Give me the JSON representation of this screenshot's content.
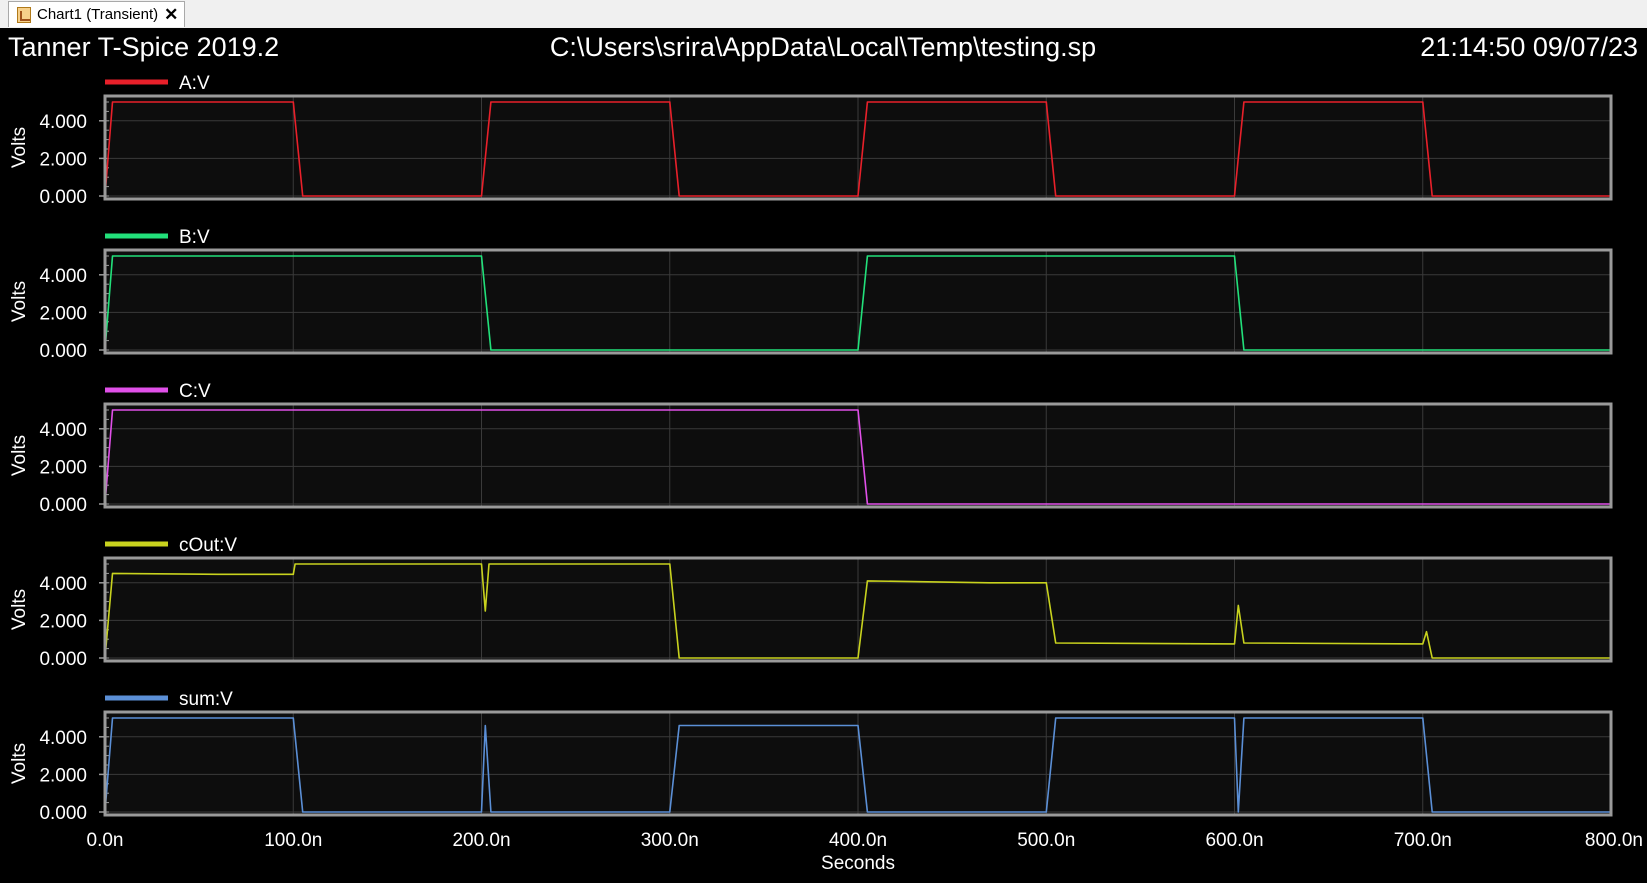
{
  "tab": {
    "label": "Chart1 (Transient)",
    "close_glyph": "✕",
    "icon": "chart-document-icon"
  },
  "header": {
    "app": "Tanner T-Spice 2019.2",
    "file": "C:\\Users\\srira\\AppData\\Local\\Temp\\testing.sp",
    "timestamp": "21:14:50 09/07/23"
  },
  "colors": {
    "background": "#000000",
    "plot_bg": "#0d0d0d",
    "frame": "#9a9a9a",
    "grid": "#3a3a3a",
    "text": "#ffffff"
  },
  "chart_data": {
    "type": "line",
    "xlabel": "Seconds",
    "xlim": [
      0,
      800
    ],
    "x_unit": "n",
    "x_ticks": [
      "0.0n",
      "100.0n",
      "200.0n",
      "300.0n",
      "400.0n",
      "500.0n",
      "600.0n",
      "700.0n",
      "800.0n"
    ],
    "ylabel": "Volts",
    "ylim": [
      0,
      5
    ],
    "y_ticks": [
      "0.000",
      "2.000",
      "4.000"
    ],
    "grid": true,
    "series": [
      {
        "name": "A:V",
        "color": "#e8202a",
        "points": [
          [
            0,
            0
          ],
          [
            4,
            5
          ],
          [
            100,
            5
          ],
          [
            105,
            0
          ],
          [
            200,
            0
          ],
          [
            205,
            5
          ],
          [
            300,
            5
          ],
          [
            305,
            0
          ],
          [
            400,
            0
          ],
          [
            405,
            5
          ],
          [
            500,
            5
          ],
          [
            505,
            0
          ],
          [
            600,
            0
          ],
          [
            605,
            5
          ],
          [
            700,
            5
          ],
          [
            705,
            0
          ],
          [
            800,
            0
          ]
        ]
      },
      {
        "name": "B:V",
        "color": "#22e07a",
        "points": [
          [
            0,
            0
          ],
          [
            4,
            5
          ],
          [
            200,
            5
          ],
          [
            205,
            0
          ],
          [
            400,
            0
          ],
          [
            405,
            5
          ],
          [
            600,
            5
          ],
          [
            605,
            0
          ],
          [
            800,
            0
          ]
        ]
      },
      {
        "name": "C:V",
        "color": "#e050e8",
        "points": [
          [
            0,
            0
          ],
          [
            4,
            5
          ],
          [
            400,
            5
          ],
          [
            405,
            0
          ],
          [
            800,
            0
          ]
        ]
      },
      {
        "name": "cOut:V",
        "color": "#c8d21e",
        "points": [
          [
            0,
            0
          ],
          [
            4,
            4.5
          ],
          [
            60,
            4.45
          ],
          [
            100,
            4.45
          ],
          [
            101,
            5
          ],
          [
            200,
            5
          ],
          [
            202,
            2.5
          ],
          [
            204,
            5
          ],
          [
            300,
            5
          ],
          [
            305,
            0
          ],
          [
            400,
            0
          ],
          [
            405,
            4.1
          ],
          [
            470,
            4
          ],
          [
            500,
            4
          ],
          [
            505,
            0.8
          ],
          [
            600,
            0.75
          ],
          [
            602,
            2.8
          ],
          [
            605,
            0.8
          ],
          [
            700,
            0.75
          ],
          [
            702,
            1.4
          ],
          [
            705,
            0
          ],
          [
            800,
            0
          ]
        ]
      },
      {
        "name": "sum:V",
        "color": "#5b8fd6",
        "points": [
          [
            0,
            0
          ],
          [
            4,
            5
          ],
          [
            100,
            5
          ],
          [
            105,
            0
          ],
          [
            200,
            0
          ],
          [
            202,
            4.6
          ],
          [
            205,
            0
          ],
          [
            300,
            0
          ],
          [
            305,
            4.6
          ],
          [
            400,
            4.6
          ],
          [
            405,
            0
          ],
          [
            500,
            0
          ],
          [
            505,
            5
          ],
          [
            600,
            5
          ],
          [
            602,
            0
          ],
          [
            605,
            5
          ],
          [
            700,
            5
          ],
          [
            705,
            0
          ],
          [
            800,
            0
          ]
        ]
      }
    ]
  }
}
